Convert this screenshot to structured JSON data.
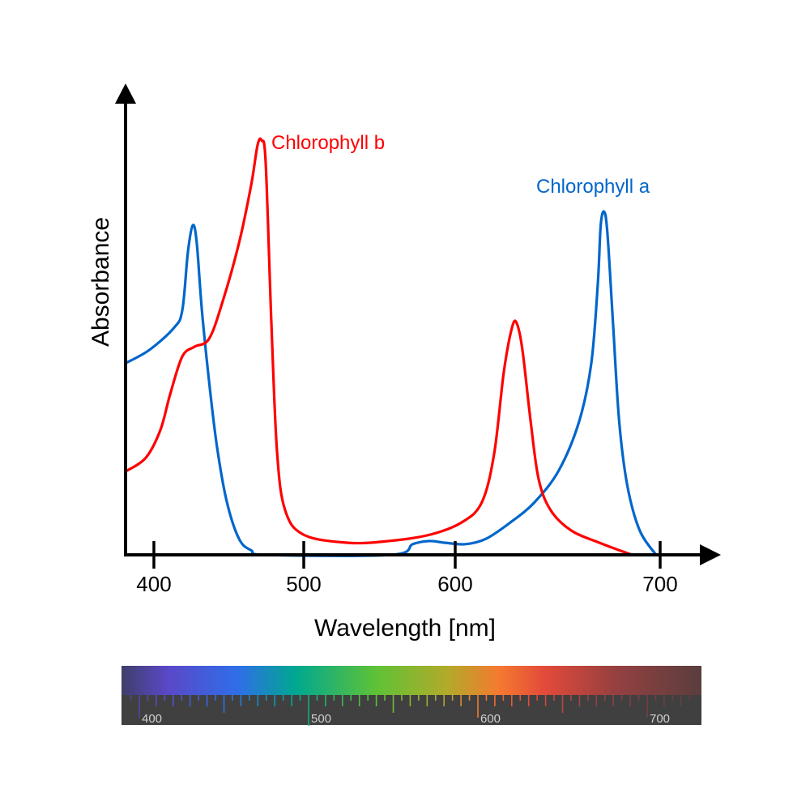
{
  "chart_data": {
    "type": "line",
    "title": "",
    "xlabel": "Wavelength [nm]",
    "ylabel": "Absorbance",
    "x_ticks": [
      400,
      500,
      600,
      700
    ],
    "y_ticks": [],
    "grid": false,
    "legend": "inline labels near peaks",
    "ylim": [
      0,
      1
    ],
    "series": [
      {
        "name": "Chlorophyll a",
        "color": "#0066cc",
        "points": [
          [
            381,
            0.43
          ],
          [
            397,
            0.46
          ],
          [
            413.5,
            0.51
          ],
          [
            419,
            0.55
          ],
          [
            422.7,
            0.68
          ],
          [
            426,
            0.74
          ],
          [
            428.6,
            0.7
          ],
          [
            432,
            0.55
          ],
          [
            436.8,
            0.39
          ],
          [
            442,
            0.245
          ],
          [
            448.6,
            0.12
          ],
          [
            456.8,
            0.036
          ],
          [
            465,
            0.01
          ],
          [
            475.7,
            0
          ],
          [
            557.8,
            0
          ],
          [
            572,
            0.024
          ],
          [
            583,
            0.031
          ],
          [
            593.6,
            0.027
          ],
          [
            605,
            0.024
          ],
          [
            615,
            0.036
          ],
          [
            627,
            0.073
          ],
          [
            638.7,
            0.118
          ],
          [
            650.6,
            0.19
          ],
          [
            660.5,
            0.3
          ],
          [
            666.4,
            0.43
          ],
          [
            669.6,
            0.61
          ],
          [
            671,
            0.74
          ],
          [
            672.7,
            0.77
          ],
          [
            674.3,
            0.72
          ],
          [
            677,
            0.52
          ],
          [
            680,
            0.3
          ],
          [
            684,
            0.155
          ],
          [
            690,
            0.055
          ],
          [
            698,
            0
          ]
        ]
      },
      {
        "name": "Chlorophyll b",
        "color": "#ff0000",
        "points": [
          [
            381,
            0.187
          ],
          [
            394.6,
            0.218
          ],
          [
            404.3,
            0.28
          ],
          [
            410.8,
            0.36
          ],
          [
            418.9,
            0.445
          ],
          [
            427,
            0.467
          ],
          [
            436.8,
            0.485
          ],
          [
            446,
            0.57
          ],
          [
            456.8,
            0.7
          ],
          [
            464.9,
            0.83
          ],
          [
            469.2,
            0.92
          ],
          [
            471.9,
            0.93
          ],
          [
            474.6,
            0.88
          ],
          [
            478.4,
            0.52
          ],
          [
            482.2,
            0.23
          ],
          [
            487.6,
            0.1
          ],
          [
            500,
            0.045
          ],
          [
            529.4,
            0.027
          ],
          [
            556,
            0.031
          ],
          [
            583,
            0.045
          ],
          [
            603.2,
            0.073
          ],
          [
            613,
            0.118
          ],
          [
            619,
            0.227
          ],
          [
            623.7,
            0.41
          ],
          [
            627.7,
            0.51
          ],
          [
            630,
            0.52
          ],
          [
            632.8,
            0.46
          ],
          [
            636.8,
            0.3
          ],
          [
            640.7,
            0.17
          ],
          [
            646.6,
            0.1
          ],
          [
            656.5,
            0.055
          ],
          [
            670.4,
            0.027
          ],
          [
            686.2,
            0
          ]
        ]
      }
    ],
    "spectrum_bar": {
      "tick_labels": [
        400,
        500,
        600,
        700
      ],
      "tick_step_nm": 5
    }
  }
}
